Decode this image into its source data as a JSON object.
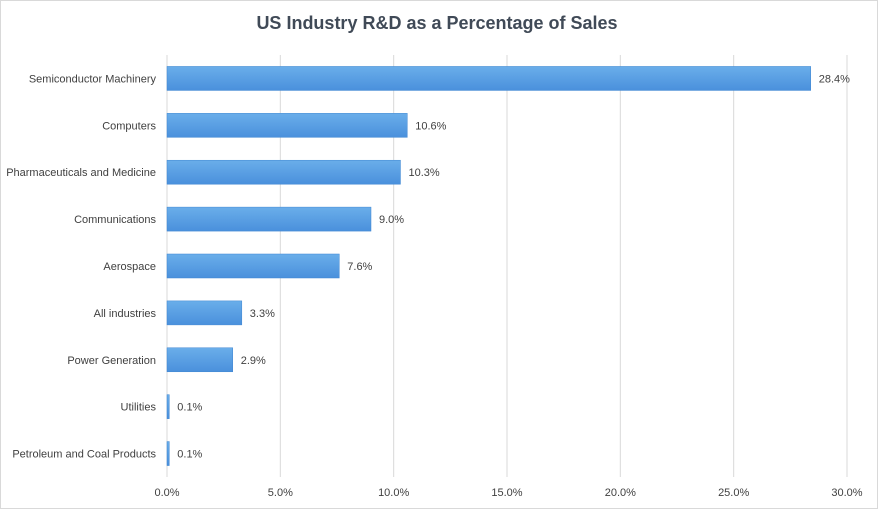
{
  "chart_data": {
    "type": "bar",
    "orientation": "horizontal",
    "title": "US Industry R&D as a Percentage of Sales",
    "categories": [
      "Semiconductor Machinery",
      "Computers",
      "Pharmaceuticals and Medicine",
      "Communications",
      "Aerospace",
      "All industries",
      "Power Generation",
      "Utilities",
      "Petroleum and Coal Products"
    ],
    "values": [
      28.4,
      10.6,
      10.3,
      9.0,
      7.6,
      3.3,
      2.9,
      0.1,
      0.1
    ],
    "data_labels": [
      "28.4%",
      "10.6%",
      "10.3%",
      "9.0%",
      "7.6%",
      "3.3%",
      "2.9%",
      "0.1%",
      "0.1%"
    ],
    "xlim": [
      0,
      30
    ],
    "x_ticks": [
      0,
      5,
      10,
      15,
      20,
      25,
      30
    ],
    "x_tick_labels": [
      "0.0%",
      "5.0%",
      "10.0%",
      "15.0%",
      "20.0%",
      "25.0%",
      "30.0%"
    ],
    "grid": true,
    "bar_color": "#4a90dc",
    "bar_color_light": "#6aaeea"
  }
}
